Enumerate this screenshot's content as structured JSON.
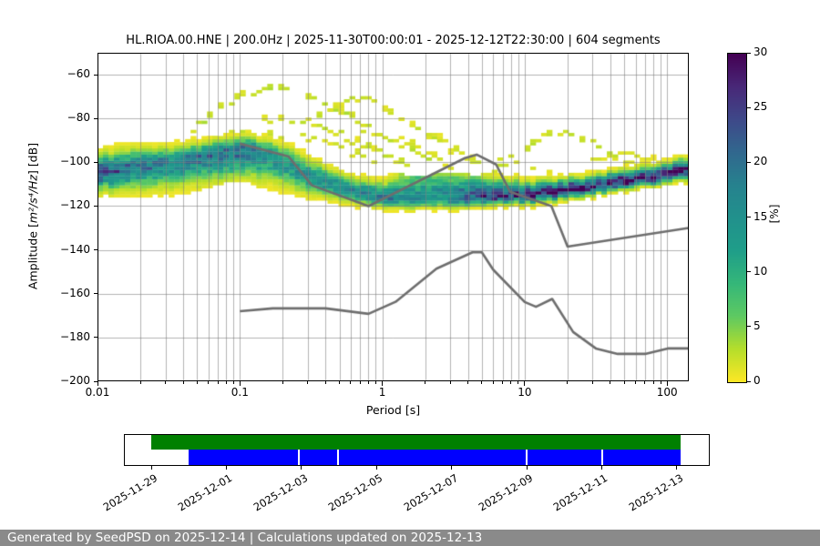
{
  "title": "HL.RIOA.00.HNE | 200.0Hz | 2025-11-30T00:00:01 - 2025-12-12T22:30:00 | 604 segments",
  "plot": {
    "xlabel": "Period [s]",
    "ylabel_prefix": "Amplitude [",
    "ylabel_math": "m²/s⁴/Hz",
    "ylabel_suffix": "] [dB]",
    "xtick_labels": [
      "0.01",
      "0.1",
      "1",
      "10",
      "100"
    ],
    "ytick_labels": [
      "−60",
      "−80",
      "−100",
      "−120",
      "−140",
      "−160",
      "−180",
      "−200"
    ],
    "colorbar_label": "[%]",
    "colorbar_tick_labels": [
      "0",
      "5",
      "10",
      "15",
      "20",
      "25",
      "30"
    ]
  },
  "chart_data": {
    "type": "heatmap",
    "title": "HL.RIOA.00.HNE | 200.0Hz | 2025-11-30T00:00:01 - 2025-12-12T22:30:00 | 604 segments",
    "xlabel": "Period [s]",
    "ylabel": "Amplitude [m²/s⁴/Hz] [dB]",
    "x_scale": "log",
    "xlim": [
      0.01,
      142
    ],
    "ylim": [
      -200,
      -50
    ],
    "xticks": [
      0.01,
      0.1,
      1,
      10,
      100
    ],
    "yticks": [
      -60,
      -80,
      -100,
      -120,
      -140,
      -160,
      -180,
      -200
    ],
    "grid": true,
    "colorbar": {
      "label": "[%]",
      "range": [
        0,
        30
      ],
      "ticks": [
        0,
        5,
        10,
        15,
        20,
        25,
        30
      ],
      "colormap": "viridis_r"
    },
    "ppsd_mode_band": {
      "comment": "probability band: [period_s, center_dB, sigma_up_dB, sigma_down_dB, peak_percent]",
      "points": [
        [
          0.01,
          -105.0,
          4.2,
          4.2,
          24
        ],
        [
          0.016,
          -103.8,
          4.5,
          5.0,
          20
        ],
        [
          0.03,
          -101.5,
          3.6,
          5.5,
          18
        ],
        [
          0.05,
          -98.5,
          3.2,
          6.0,
          19
        ],
        [
          0.08,
          -95.5,
          3.0,
          6.5,
          21
        ],
        [
          0.11,
          -95.0,
          3.0,
          6.5,
          20
        ],
        [
          0.16,
          -97.5,
          3.5,
          6.0,
          16
        ],
        [
          0.25,
          -103.5,
          4.0,
          5.0,
          15
        ],
        [
          0.4,
          -110.0,
          3.5,
          3.5,
          15
        ],
        [
          0.6,
          -114.0,
          3.3,
          2.6,
          17
        ],
        [
          1.0,
          -117.0,
          3.5,
          2.2,
          18
        ],
        [
          1.8,
          -117.5,
          8.0,
          2.2,
          15
        ],
        [
          3.0,
          -117.0,
          7.0,
          2.2,
          16
        ],
        [
          4.5,
          -116.5,
          5.0,
          2.0,
          24
        ],
        [
          7.0,
          -116.0,
          3.5,
          2.0,
          27
        ],
        [
          10.0,
          -115.5,
          3.0,
          2.0,
          29
        ],
        [
          15.0,
          -114.5,
          2.8,
          2.0,
          29
        ],
        [
          25.0,
          -112.5,
          2.6,
          1.9,
          29
        ],
        [
          40.0,
          -110.5,
          2.5,
          1.9,
          29
        ],
        [
          70.0,
          -107.5,
          2.5,
          1.9,
          29
        ],
        [
          100.0,
          -106.0,
          2.5,
          2.0,
          29
        ],
        [
          142.0,
          -104.0,
          2.6,
          2.2,
          29
        ]
      ]
    },
    "transient_arcs": [
      {
        "pct": 2.5,
        "points": [
          [
            0.045,
            -86
          ],
          [
            0.08,
            -74
          ],
          [
            0.14,
            -66.5
          ],
          [
            0.22,
            -67.5
          ],
          [
            0.35,
            -73
          ],
          [
            0.6,
            -80
          ],
          [
            1.0,
            -88
          ],
          [
            1.6,
            -95
          ],
          [
            2.3,
            -101
          ]
        ]
      },
      {
        "pct": 2.0,
        "points": [
          [
            0.35,
            -80
          ],
          [
            0.55,
            -73.5
          ],
          [
            0.75,
            -72
          ],
          [
            1.1,
            -77
          ],
          [
            1.8,
            -85
          ],
          [
            2.6,
            -92
          ],
          [
            3.5,
            -98
          ]
        ]
      },
      {
        "pct": 2.0,
        "points": [
          [
            0.05,
            -95
          ],
          [
            0.1,
            -86
          ],
          [
            0.18,
            -80.5
          ],
          [
            0.3,
            -82
          ],
          [
            0.5,
            -88
          ],
          [
            0.9,
            -96
          ],
          [
            1.5,
            -102
          ]
        ]
      },
      {
        "pct": 1.8,
        "points": [
          [
            0.06,
            -98
          ],
          [
            0.12,
            -90
          ],
          [
            0.22,
            -87.5
          ],
          [
            0.38,
            -90
          ],
          [
            0.65,
            -97
          ],
          [
            1.1,
            -104
          ]
        ]
      },
      {
        "pct": 1.5,
        "points": [
          [
            0.02,
            -97
          ],
          [
            0.045,
            -92
          ],
          [
            0.1,
            -92.5
          ],
          [
            0.22,
            -97
          ],
          [
            0.45,
            -104
          ],
          [
            0.7,
            -109
          ]
        ]
      },
      {
        "pct": 2.2,
        "points": [
          [
            6.0,
            -106
          ],
          [
            9.0,
            -96
          ],
          [
            14.0,
            -89
          ],
          [
            20.0,
            -87
          ],
          [
            30.0,
            -91
          ],
          [
            45.0,
            -98
          ],
          [
            65.0,
            -104
          ]
        ]
      },
      {
        "pct": 1.8,
        "points": [
          [
            1.3,
            -80
          ],
          [
            2.2,
            -88
          ],
          [
            3.8,
            -97
          ],
          [
            5.5,
            -104
          ]
        ]
      },
      {
        "pct": 1.5,
        "points": [
          [
            3.0,
            -102
          ],
          [
            5.0,
            -97
          ],
          [
            8.0,
            -99
          ],
          [
            13.0,
            -104
          ],
          [
            22.0,
            -109
          ]
        ]
      },
      {
        "pct": 1.5,
        "points": [
          [
            0.5,
            -92
          ],
          [
            0.8,
            -87
          ],
          [
            1.2,
            -89
          ],
          [
            2.0,
            -96
          ],
          [
            3.0,
            -103
          ]
        ]
      },
      {
        "pct": 1.3,
        "points": [
          [
            30,
            -100
          ],
          [
            50,
            -97
          ],
          [
            75,
            -99
          ],
          [
            110,
            -103
          ]
        ]
      }
    ],
    "noise_models": {
      "color": "#6e6e6e",
      "nhnm": [
        [
          0.1,
          -91.5
        ],
        [
          0.22,
          -97.4
        ],
        [
          0.32,
          -110.5
        ],
        [
          0.8,
          -120.0
        ],
        [
          3.8,
          -98.1
        ],
        [
          4.6,
          -96.5
        ],
        [
          6.3,
          -101.0
        ],
        [
          7.9,
          -113.5
        ],
        [
          15.4,
          -120.0
        ],
        [
          20.0,
          -138.5
        ],
        [
          142.0,
          -130.0
        ]
      ],
      "nlnm": [
        [
          0.1,
          -168.0
        ],
        [
          0.17,
          -166.7
        ],
        [
          0.4,
          -166.7
        ],
        [
          0.8,
          -169.2
        ],
        [
          1.24,
          -163.7
        ],
        [
          2.4,
          -148.6
        ],
        [
          4.3,
          -141.1
        ],
        [
          5.0,
          -141.1
        ],
        [
          6.0,
          -149.0
        ],
        [
          10.0,
          -163.8
        ],
        [
          12.0,
          -166.0
        ],
        [
          15.6,
          -162.4
        ],
        [
          21.9,
          -177.5
        ],
        [
          31.6,
          -185.0
        ],
        [
          45.0,
          -187.5
        ],
        [
          70.0,
          -187.5
        ],
        [
          101.0,
          -185.0
        ],
        [
          142.0,
          -185.0
        ]
      ]
    }
  },
  "timeline": {
    "tick_labels": [
      "2025-11-29",
      "2025-12-01",
      "2025-12-03",
      "2025-12-05",
      "2025-12-07",
      "2025-12-09",
      "2025-12-11",
      "2025-12-13"
    ],
    "tick_days": [
      0,
      2,
      4,
      6,
      8,
      10,
      12,
      14
    ],
    "axis_range_days": [
      -0.73,
      14.88
    ],
    "bars": [
      {
        "name": "data-availability",
        "color": "#008000",
        "start_day": 0.0,
        "end_day": 14.1,
        "gaps_days": []
      },
      {
        "name": "processed-segments",
        "color": "#0000ff",
        "start_day": 1.0,
        "end_day": 14.1,
        "gaps_days": [
          3.94,
          4.98,
          10.0,
          12.02
        ]
      }
    ]
  },
  "footer": {
    "text": "Generated by SeedPSD on 2025-12-14 | Calculations updated on 2025-12-13",
    "bg_color": "#8a8a8a"
  }
}
